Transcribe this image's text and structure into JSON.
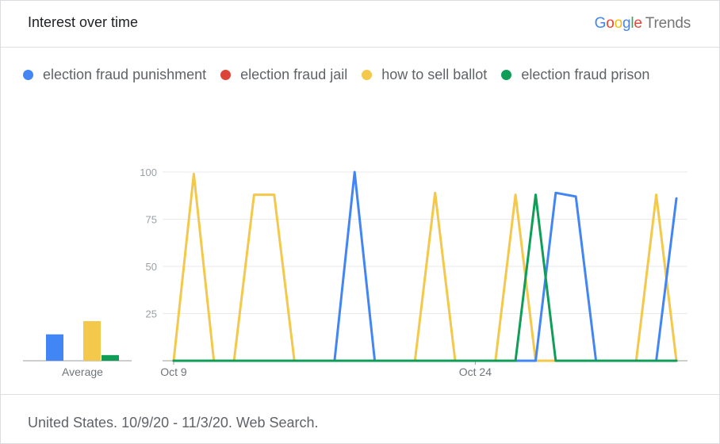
{
  "header": {
    "title": "Interest over time",
    "brand_logo": "Google",
    "brand_product": "Trends"
  },
  "footer": {
    "text": "United States. 10/9/20 - 11/3/20. Web Search."
  },
  "chart_data": {
    "type": "line",
    "x": [
      "2020-10-09",
      "2020-10-10",
      "2020-10-11",
      "2020-10-12",
      "2020-10-13",
      "2020-10-14",
      "2020-10-15",
      "2020-10-16",
      "2020-10-17",
      "2020-10-18",
      "2020-10-19",
      "2020-10-20",
      "2020-10-21",
      "2020-10-22",
      "2020-10-23",
      "2020-10-24",
      "2020-10-25",
      "2020-10-26",
      "2020-10-27",
      "2020-10-28",
      "2020-10-29",
      "2020-10-30",
      "2020-10-31",
      "2020-11-01",
      "2020-11-02",
      "2020-11-03"
    ],
    "ylim": [
      0,
      100
    ],
    "yticks": [
      25,
      50,
      75,
      100
    ],
    "xtick_labels": [
      {
        "x": "2020-10-09",
        "label": "Oct 9"
      },
      {
        "x": "2020-10-24",
        "label": "Oct 24"
      }
    ],
    "grid": true,
    "legend_position": "top",
    "series": [
      {
        "name": "election fraud punishment",
        "color": "#4285F4",
        "values": [
          0,
          0,
          0,
          0,
          0,
          0,
          0,
          0,
          0,
          100,
          0,
          0,
          0,
          0,
          0,
          0,
          0,
          0,
          0,
          89,
          87,
          0,
          0,
          0,
          0,
          86
        ]
      },
      {
        "name": "election fraud jail",
        "color": "#DB4437",
        "values": [
          0,
          0,
          0,
          0,
          0,
          0,
          0,
          0,
          0,
          0,
          0,
          0,
          0,
          0,
          0,
          0,
          0,
          0,
          0,
          0,
          0,
          0,
          0,
          0,
          0,
          0
        ]
      },
      {
        "name": "how to sell ballot",
        "color": "#F4C84A",
        "values": [
          0,
          99,
          0,
          0,
          88,
          88,
          0,
          0,
          0,
          0,
          0,
          0,
          0,
          89,
          0,
          0,
          0,
          88,
          0,
          0,
          0,
          0,
          0,
          0,
          88,
          0
        ]
      },
      {
        "name": "election fraud prison",
        "color": "#0F9D58",
        "values": [
          0,
          0,
          0,
          0,
          0,
          0,
          0,
          0,
          0,
          0,
          0,
          0,
          0,
          0,
          0,
          0,
          0,
          0,
          88,
          0,
          0,
          0,
          0,
          0,
          0,
          0
        ]
      }
    ],
    "average": {
      "label": "Average",
      "values": [
        14,
        0,
        21,
        3
      ]
    }
  }
}
